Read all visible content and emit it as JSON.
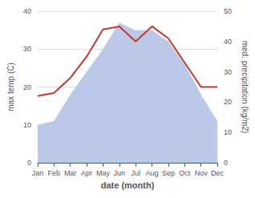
{
  "chart_data": {
    "type": "line",
    "categories": [
      "Jan",
      "Feb",
      "Mar",
      "Apr",
      "May",
      "Jun",
      "Jul",
      "Aug",
      "Sep",
      "Oct",
      "Nov",
      "Dec"
    ],
    "xlabel": "date (month)",
    "ylabel": "max temp (C)",
    "y2label": "med. precipitation (kg/m2)",
    "series": [
      {
        "type": "area",
        "color": "#bcc8e8",
        "values": [
          10,
          11,
          18,
          24,
          30,
          37,
          35,
          35,
          32,
          26,
          18,
          11
        ]
      },
      {
        "type": "line",
        "color": "#c0392b",
        "axis": "y2",
        "values": [
          22,
          23,
          28,
          35,
          44,
          45,
          40,
          45,
          41,
          33,
          25,
          25
        ]
      }
    ],
    "ylim": [
      0,
      40
    ],
    "yticks": [
      0,
      10,
      20,
      30,
      40
    ],
    "y2lim": [
      0,
      50
    ],
    "y2ticks": [
      0,
      10,
      20,
      30,
      40,
      50
    ],
    "grid": true
  }
}
